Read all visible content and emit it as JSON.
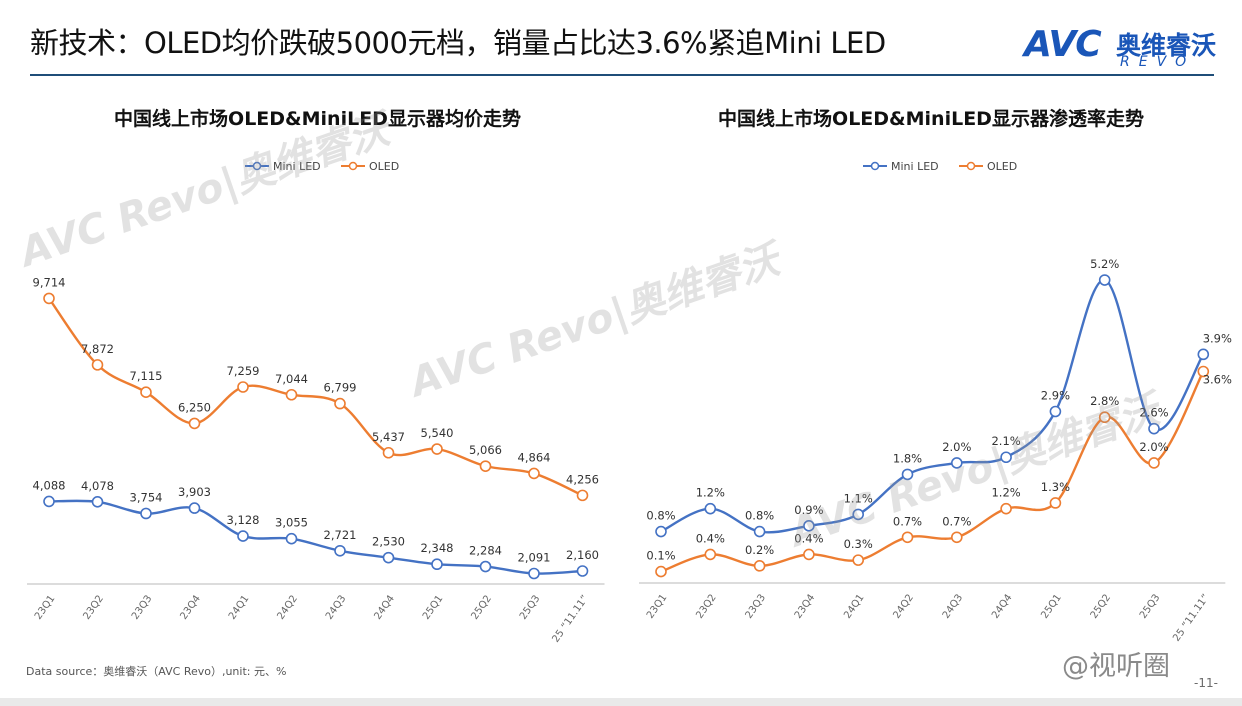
{
  "header": {
    "title": "新技术：OLED均价跌破5000元档，销量占比达3.6%紧追Mini LED",
    "logo_mark": "AVC",
    "logo_cn": "奥维睿沃",
    "logo_en": "REVO"
  },
  "watermark": "AVC Revo|奥维睿沃",
  "colors": {
    "mini_led": "#4472c4",
    "oled": "#ed7d31",
    "title_rule": "#1f4e79",
    "brand": "#1a56b8"
  },
  "chart_data": [
    {
      "type": "line",
      "title": "中国线上市场OLED&MiniLED显示器均价走势",
      "categories": [
        "23Q1",
        "23Q2",
        "23Q3",
        "23Q4",
        "24Q1",
        "24Q2",
        "24Q3",
        "24Q4",
        "25Q1",
        "25Q2",
        "25Q3",
        "25 “11.11”"
      ],
      "series": [
        {
          "name": "Mini LED",
          "values": [
            4088,
            4078,
            3754,
            3903,
            3128,
            3055,
            2721,
            2530,
            2348,
            2284,
            2091,
            2160
          ],
          "labels": [
            "4,088",
            "4,078",
            "3,754",
            "3,903",
            "3,128",
            "3,055",
            "2,721",
            "2,530",
            "2,348",
            "2,284",
            "2,091",
            "2,160"
          ]
        },
        {
          "name": "OLED",
          "values": [
            9714,
            7872,
            7115,
            6250,
            7259,
            7044,
            6799,
            5437,
            5540,
            5066,
            4864,
            4256
          ],
          "labels": [
            "9,714",
            "7,872",
            "7,115",
            "6,250",
            "7,259",
            "7,044",
            "6,799",
            "5,437",
            "5,540",
            "5,066",
            "4,864",
            "4,256"
          ]
        }
      ],
      "legend": "top-center",
      "ylim": [
        1800,
        11000
      ],
      "grid": false
    },
    {
      "type": "line",
      "title": "中国线上市场OLED&MiniLED显示器渗透率走势",
      "categories": [
        "23Q1",
        "23Q2",
        "23Q3",
        "23Q4",
        "24Q1",
        "24Q2",
        "24Q3",
        "24Q4",
        "25Q1",
        "25Q2",
        "25Q3",
        "25 “11.11”"
      ],
      "series": [
        {
          "name": "Mini LED",
          "values": [
            0.8,
            1.2,
            0.8,
            0.9,
            1.1,
            1.8,
            2.0,
            2.1,
            2.9,
            5.2,
            2.6,
            3.9
          ],
          "labels": [
            "0.8%",
            "1.2%",
            "0.8%",
            "0.9%",
            "1.1%",
            "1.8%",
            "2.0%",
            "2.1%",
            "2.9%",
            "5.2%",
            "2.6%",
            "3.9%"
          ]
        },
        {
          "name": "OLED",
          "values": [
            0.1,
            0.4,
            0.2,
            0.4,
            0.3,
            0.7,
            0.7,
            1.2,
            1.3,
            2.8,
            2.0,
            3.6
          ],
          "labels": [
            "0.1%",
            "0.4%",
            "0.2%",
            "0.4%",
            "0.3%",
            "0.7%",
            "0.7%",
            "1.2%",
            "1.3%",
            "2.8%",
            "2.0%",
            "3.6%"
          ]
        }
      ],
      "legend": "top-center",
      "ylim": [
        -0.1,
        6.6
      ],
      "grid": false
    }
  ],
  "footer": {
    "source": "Data source：奥维睿沃（AVC Revo）,unit: 元、%",
    "credit": "@视听圈",
    "page": "-11-"
  }
}
